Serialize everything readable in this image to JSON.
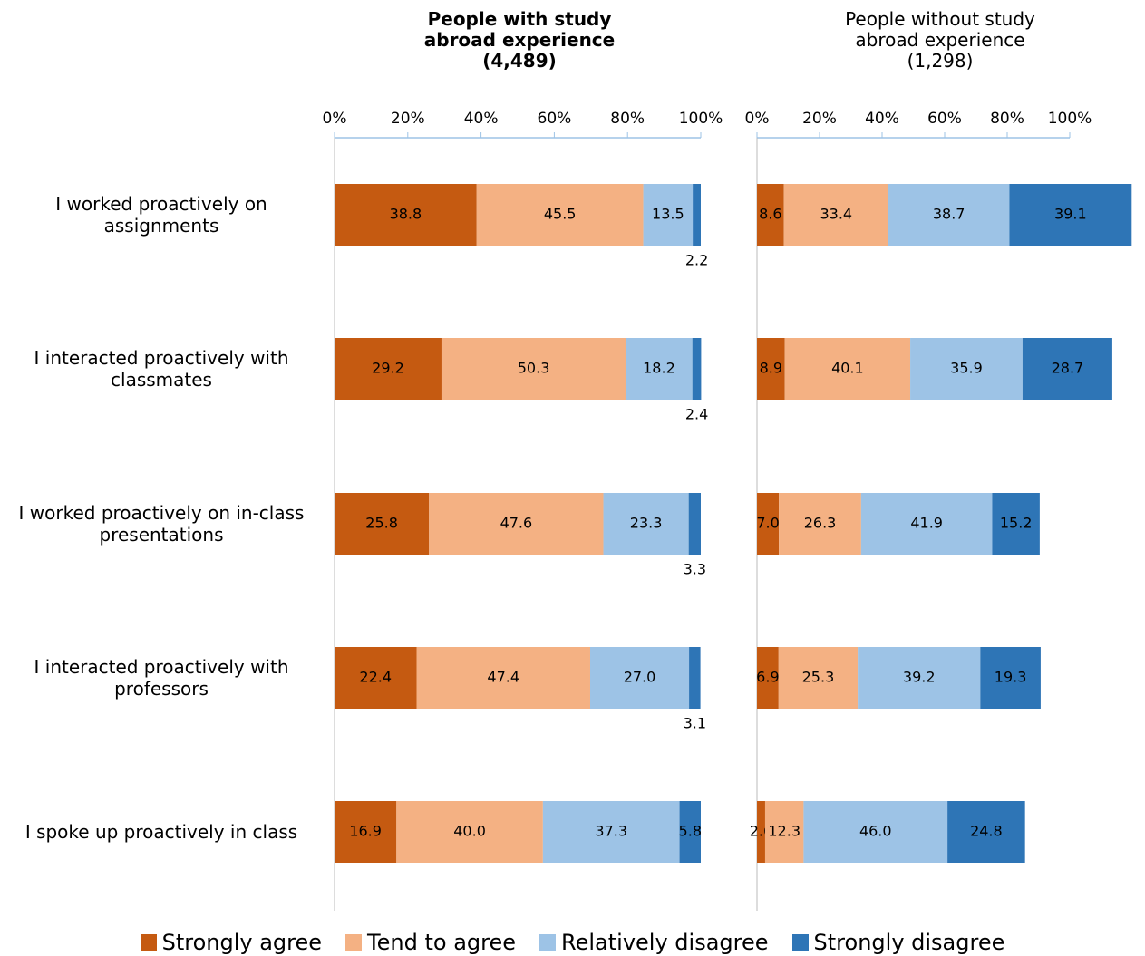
{
  "chart_data": [
    {
      "type": "bar",
      "title": "People with study abroad experience (4,489)",
      "categories": [
        "I worked proactively on assignments",
        "I interacted proactively with classmates",
        "I worked proactively on in-class presentations",
        "I interacted proactively with professors",
        "I spoke up proactively in class"
      ],
      "series": [
        {
          "name": "Strongly agree",
          "color": "#c55a11",
          "values": [
            38.8,
            29.2,
            25.8,
            22.4,
            16.9
          ]
        },
        {
          "name": "Tend to agree",
          "color": "#f4b183",
          "values": [
            45.5,
            50.3,
            47.6,
            47.4,
            40.0
          ],
          "value_labels": [
            "45.5",
            "50.3",
            "47.6",
            "47.4",
            "40.0"
          ]
        },
        {
          "name": "Relatively disagree",
          "color": "#9dc3e6",
          "values": [
            13.5,
            18.2,
            23.3,
            27.0,
            37.3
          ],
          "value_labels": [
            "13.5",
            "18.2",
            "23.3",
            "27.0",
            "37.3"
          ]
        },
        {
          "name": "Strongly disagree",
          "color": "#2e75b6",
          "values": [
            2.2,
            2.4,
            3.3,
            3.1,
            5.8
          ]
        }
      ],
      "xlim": [
        0,
        100
      ],
      "xticks": [
        {
          "value": 0,
          "label": "0%"
        },
        {
          "value": 20,
          "label": "20%"
        },
        {
          "value": 40,
          "label": "40%"
        },
        {
          "value": 60,
          "label": "60%"
        },
        {
          "value": 80,
          "label": "80%"
        },
        {
          "value": 100,
          "label": "100%"
        }
      ]
    },
    {
      "type": "bar",
      "title": "People without study abroad experience (1,298)",
      "series": [
        {
          "color": "#c55a11",
          "values": [
            8.6,
            8.9,
            7.0,
            6.9,
            2.6
          ],
          "value_labels": [
            "8.6",
            "8.9",
            "7.0",
            "6.9",
            "2.6"
          ]
        },
        {
          "color": "#f4b183",
          "values": [
            33.4,
            40.1,
            26.3,
            25.3,
            12.3
          ]
        },
        {
          "color": "#9dc3e6",
          "values": [
            38.7,
            35.9,
            41.9,
            39.2,
            46.0
          ],
          "value_labels": [
            "38.7",
            "35.9",
            "41.9",
            "39.2",
            "46.0"
          ]
        },
        {
          "color": "#2e75b6",
          "values": [
            39.1,
            28.7,
            15.2,
            19.3,
            24.8
          ]
        }
      ],
      "xlim": [
        0,
        100
      ],
      "xticks": [
        {
          "value": 0,
          "label": "0%"
        },
        {
          "value": 20,
          "label": "20%"
        },
        {
          "value": 40,
          "label": "40%"
        },
        {
          "value": 60,
          "label": "60%"
        },
        {
          "value": 80,
          "label": "80%"
        },
        {
          "value": 100,
          "label": "100%"
        }
      ]
    }
  ]
}
